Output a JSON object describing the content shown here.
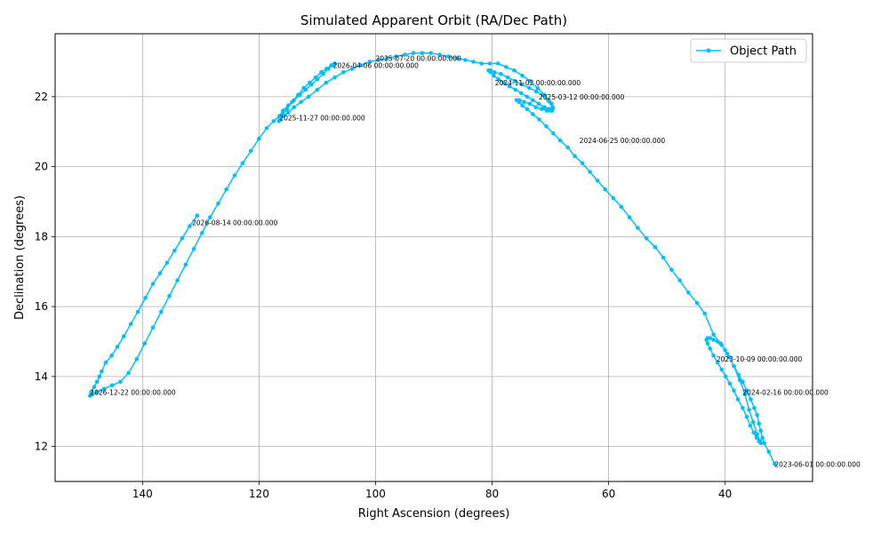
{
  "chart_data": {
    "type": "line",
    "title": "Simulated Apparent Orbit (RA/Dec Path)",
    "xlabel": "Right Ascension (degrees)",
    "ylabel": "Declination (degrees)",
    "xlim": [
      155,
      25
    ],
    "ylim": [
      11,
      23.8
    ],
    "x_inverted": true,
    "xticks": [
      140,
      120,
      100,
      80,
      60,
      40
    ],
    "yticks": [
      12,
      14,
      16,
      18,
      20,
      22
    ],
    "grid": true,
    "legend": {
      "position": "top-right",
      "entries": [
        "Object Path"
      ]
    },
    "series": [
      {
        "name": "Object Path",
        "color": "#00bfff",
        "marker": "circle",
        "points": [
          [
            31.5,
            11.5
          ],
          [
            32.5,
            11.85
          ],
          [
            33.3,
            12.1
          ],
          [
            33.6,
            12.25
          ],
          [
            33.9,
            12.45
          ],
          [
            34.2,
            12.65
          ],
          [
            34.5,
            12.9
          ],
          [
            35.0,
            13.1
          ],
          [
            35.6,
            13.35
          ],
          [
            36.3,
            13.6
          ],
          [
            37.0,
            13.85
          ],
          [
            37.7,
            14.05
          ],
          [
            38.5,
            14.3
          ],
          [
            39.3,
            14.55
          ],
          [
            40.0,
            14.75
          ],
          [
            40.6,
            14.9
          ],
          [
            41.3,
            15.0
          ],
          [
            42.0,
            15.05
          ],
          [
            42.6,
            15.1
          ],
          [
            43.0,
            15.1
          ],
          [
            43.2,
            15.05
          ],
          [
            43.0,
            14.95
          ],
          [
            42.6,
            14.8
          ],
          [
            42.0,
            14.6
          ],
          [
            41.3,
            14.4
          ],
          [
            40.6,
            14.2
          ],
          [
            39.9,
            14.0
          ],
          [
            39.2,
            13.8
          ],
          [
            38.5,
            13.6
          ],
          [
            37.8,
            13.35
          ],
          [
            37.0,
            13.1
          ],
          [
            36.3,
            12.85
          ],
          [
            35.7,
            12.6
          ],
          [
            35.1,
            12.4
          ],
          [
            34.6,
            12.25
          ],
          [
            34.2,
            12.15
          ],
          [
            33.9,
            12.1
          ],
          [
            34.0,
            12.15
          ],
          [
            34.5,
            12.35
          ],
          [
            35.2,
            12.7
          ],
          [
            35.9,
            13.05
          ],
          [
            36.6,
            13.5
          ],
          [
            37.5,
            13.9
          ],
          [
            38.5,
            14.3
          ],
          [
            39.6,
            14.65
          ],
          [
            40.8,
            14.95
          ],
          [
            42.0,
            15.2
          ],
          [
            43.5,
            15.8
          ],
          [
            44.8,
            16.1
          ],
          [
            46.3,
            16.4
          ],
          [
            47.8,
            16.75
          ],
          [
            49.2,
            17.05
          ],
          [
            50.6,
            17.4
          ],
          [
            52.0,
            17.7
          ],
          [
            53.5,
            17.95
          ],
          [
            55.0,
            18.25
          ],
          [
            56.4,
            18.55
          ],
          [
            57.8,
            18.85
          ],
          [
            59.2,
            19.1
          ],
          [
            60.6,
            19.35
          ],
          [
            61.9,
            19.6
          ],
          [
            63.2,
            19.85
          ],
          [
            64.5,
            20.1
          ],
          [
            65.8,
            20.3
          ],
          [
            67.0,
            20.55
          ],
          [
            68.3,
            20.75
          ],
          [
            69.5,
            20.95
          ],
          [
            70.7,
            21.15
          ],
          [
            71.9,
            21.35
          ],
          [
            73.0,
            21.5
          ],
          [
            74.0,
            21.65
          ],
          [
            74.8,
            21.75
          ],
          [
            75.4,
            21.85
          ],
          [
            75.8,
            21.9
          ],
          [
            75.3,
            21.9
          ],
          [
            74.5,
            21.85
          ],
          [
            73.5,
            21.8
          ],
          [
            72.5,
            21.7
          ],
          [
            71.5,
            21.65
          ],
          [
            70.6,
            21.6
          ],
          [
            70.0,
            21.6
          ],
          [
            69.7,
            21.65
          ],
          [
            69.6,
            21.7
          ],
          [
            69.8,
            21.8
          ],
          [
            70.4,
            21.9
          ],
          [
            71.3,
            22.05
          ],
          [
            72.4,
            22.15
          ],
          [
            73.6,
            22.25
          ],
          [
            74.9,
            22.35
          ],
          [
            76.1,
            22.45
          ],
          [
            77.3,
            22.55
          ],
          [
            78.5,
            22.65
          ],
          [
            79.6,
            22.7
          ],
          [
            80.3,
            22.75
          ],
          [
            80.6,
            22.75
          ],
          [
            80.3,
            22.7
          ],
          [
            79.7,
            22.6
          ],
          [
            78.9,
            22.5
          ],
          [
            78.0,
            22.4
          ],
          [
            77.0,
            22.3
          ],
          [
            76.0,
            22.2
          ],
          [
            75.0,
            22.1
          ],
          [
            74.0,
            22.0
          ],
          [
            73.0,
            21.9
          ],
          [
            72.0,
            21.8
          ],
          [
            71.0,
            21.7
          ],
          [
            70.2,
            21.65
          ],
          [
            69.7,
            21.6
          ],
          [
            69.6,
            21.65
          ],
          [
            70.1,
            21.85
          ],
          [
            71.0,
            22.05
          ],
          [
            72.2,
            22.25
          ],
          [
            73.5,
            22.45
          ],
          [
            74.8,
            22.6
          ],
          [
            76.2,
            22.75
          ],
          [
            77.6,
            22.85
          ],
          [
            79.0,
            22.95
          ],
          [
            80.4,
            22.95
          ],
          [
            81.8,
            22.95
          ],
          [
            83.2,
            23.0
          ],
          [
            84.6,
            23.05
          ],
          [
            86.0,
            23.1
          ],
          [
            87.5,
            23.15
          ],
          [
            89.0,
            23.2
          ],
          [
            90.5,
            23.25
          ],
          [
            92.0,
            23.25
          ],
          [
            93.5,
            23.25
          ],
          [
            95.0,
            23.2
          ],
          [
            96.5,
            23.15
          ],
          [
            98.0,
            23.1
          ],
          [
            99.5,
            23.05
          ],
          [
            101.0,
            23.0
          ],
          [
            102.5,
            22.9
          ],
          [
            104.0,
            22.8
          ],
          [
            105.5,
            22.7
          ],
          [
            107.0,
            22.55
          ],
          [
            108.5,
            22.4
          ],
          [
            110.0,
            22.2
          ],
          [
            111.5,
            22.0
          ],
          [
            112.8,
            21.85
          ],
          [
            114.0,
            21.7
          ],
          [
            115.0,
            21.55
          ],
          [
            115.8,
            21.45
          ],
          [
            116.3,
            21.35
          ],
          [
            116.6,
            21.3
          ],
          [
            116.4,
            21.35
          ],
          [
            115.9,
            21.5
          ],
          [
            115.2,
            21.65
          ],
          [
            114.3,
            21.85
          ],
          [
            113.3,
            22.05
          ],
          [
            112.3,
            22.25
          ],
          [
            111.3,
            22.4
          ],
          [
            110.3,
            22.55
          ],
          [
            109.3,
            22.7
          ],
          [
            108.4,
            22.8
          ],
          [
            107.6,
            22.9
          ],
          [
            107.0,
            22.95
          ],
          [
            107.3,
            22.9
          ],
          [
            108.1,
            22.8
          ],
          [
            109.0,
            22.65
          ],
          [
            110.0,
            22.5
          ],
          [
            111.0,
            22.35
          ],
          [
            112.0,
            22.2
          ],
          [
            113.0,
            22.05
          ],
          [
            114.0,
            21.9
          ],
          [
            115.0,
            21.75
          ],
          [
            115.9,
            21.6
          ],
          [
            116.5,
            21.45
          ],
          [
            117.5,
            21.3
          ],
          [
            118.7,
            21.1
          ],
          [
            120.0,
            20.8
          ],
          [
            121.4,
            20.45
          ],
          [
            122.8,
            20.1
          ],
          [
            124.2,
            19.75
          ],
          [
            125.6,
            19.35
          ],
          [
            127.0,
            18.95
          ],
          [
            128.4,
            18.55
          ],
          [
            129.8,
            18.1
          ],
          [
            131.2,
            17.65
          ],
          [
            132.6,
            17.2
          ],
          [
            134.0,
            16.75
          ],
          [
            135.4,
            16.3
          ],
          [
            136.8,
            15.85
          ],
          [
            138.2,
            15.4
          ],
          [
            139.6,
            14.95
          ],
          [
            141.0,
            14.5
          ],
          [
            142.4,
            14.1
          ],
          [
            143.8,
            13.85
          ],
          [
            145.2,
            13.75
          ],
          [
            146.6,
            13.65
          ],
          [
            147.8,
            13.55
          ],
          [
            148.6,
            13.5
          ],
          [
            149.0,
            13.45
          ],
          [
            148.8,
            13.55
          ],
          [
            148.3,
            13.7
          ],
          [
            147.8,
            13.85
          ],
          [
            147.4,
            14.0
          ],
          [
            147.0,
            14.15
          ],
          [
            146.3,
            14.4
          ],
          [
            145.3,
            14.6
          ],
          [
            144.3,
            14.85
          ],
          [
            143.2,
            15.15
          ],
          [
            142.0,
            15.5
          ],
          [
            140.8,
            15.85
          ],
          [
            139.5,
            16.25
          ],
          [
            138.2,
            16.65
          ],
          [
            137.0,
            16.95
          ],
          [
            135.8,
            17.25
          ],
          [
            134.5,
            17.6
          ],
          [
            133.2,
            17.95
          ],
          [
            131.9,
            18.3
          ],
          [
            130.6,
            18.6
          ]
        ]
      }
    ],
    "annotations": [
      {
        "text": "2023-06-01 00:00:00.000",
        "x": 31.5,
        "y": 11.5
      },
      {
        "text": "2023-10-09 00:00:00.000",
        "x": 41.5,
        "y": 14.5
      },
      {
        "text": "2024-02-16 00:00:00.000",
        "x": 37.0,
        "y": 13.55
      },
      {
        "text": "2024-06-25 00:00:00.000",
        "x": 65.0,
        "y": 20.75
      },
      {
        "text": "2024-11-02 00:00:00.000",
        "x": 79.5,
        "y": 22.4
      },
      {
        "text": "2025-03-12 00:00:00.000",
        "x": 72.0,
        "y": 22.0
      },
      {
        "text": "2025-07-20 00:00:00.000",
        "x": 100.0,
        "y": 23.1
      },
      {
        "text": "2025-11-27 00:00:00.000",
        "x": 116.5,
        "y": 21.4
      },
      {
        "text": "2026-04-06 00:00:00.000",
        "x": 107.3,
        "y": 22.9
      },
      {
        "text": "2026-08-14 00:00:00.000",
        "x": 131.5,
        "y": 18.4
      },
      {
        "text": "2026-12-22 00:00:00.000",
        "x": 149.0,
        "y": 13.55
      }
    ]
  }
}
